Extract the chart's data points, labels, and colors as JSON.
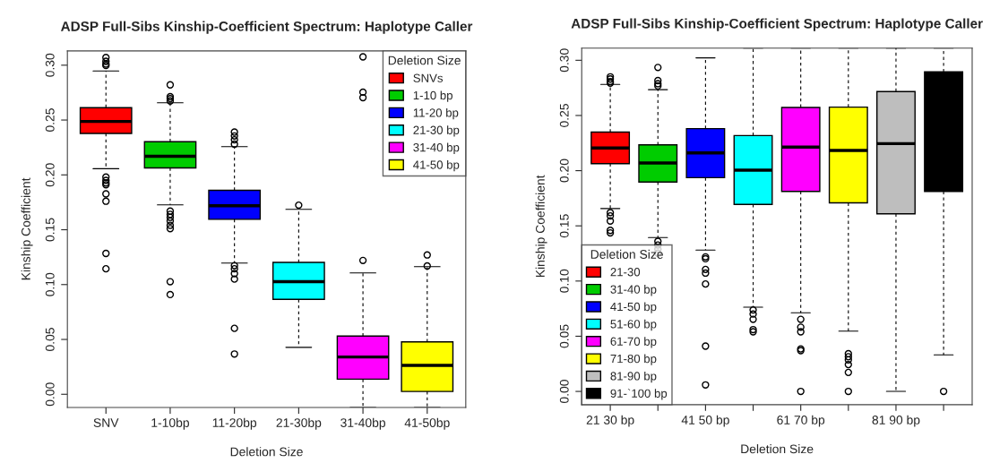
{
  "chart_data": [
    {
      "type": "box",
      "title": "ADSP Full-Sibs Kinship-Coefficient Spectrum: Haplotype Caller",
      "xlabel": "Deletion Size",
      "ylabel": "Kinship Coefficient",
      "legend_title": "Deletion Size",
      "legend": "top right",
      "grid": false,
      "categories": [
        "SNV",
        "1-10bp",
        "11-20bp",
        "21-30bp",
        "31-40bp",
        "41-50bp"
      ],
      "ylim": [
        -0.012,
        0.313
      ],
      "yticks": [
        {
          "value": 0,
          "label": "0.00"
        },
        0.05,
        {
          "value": 0.1,
          "label": "0.10"
        },
        0.15,
        {
          "value": 0.2,
          "label": "0.20"
        },
        0.25,
        {
          "value": 0.3,
          "label": "0.30"
        }
      ],
      "series": [
        {
          "name": "SNVs",
          "color": "#ff0000",
          "boxes": [
            {
              "low": 0.2056,
              "q1": 0.2378,
              "median": 0.2487,
              "q3": 0.2613,
              "high": 0.2947,
              "outliers": [
                0.307,
                0.3035,
                0.301,
                0.2997,
                0.198,
                0.195,
                0.1927,
                0.191,
                0.1827,
                0.176,
                0.1284,
                0.1144
              ]
            },
            null,
            null,
            null,
            null,
            null
          ]
        },
        {
          "name": "1-10 bp",
          "color": "#00cc00",
          "boxes": [
            null,
            {
              "low": 0.1727,
              "q1": 0.2064,
              "median": 0.217,
              "q3": 0.2302,
              "high": 0.2657,
              "outliers": [
                0.2821,
                0.2713,
                0.2695,
                0.2674,
                0.167,
                0.164,
                0.1613,
                0.158,
                0.154,
                0.151,
                0.1026,
                0.0909
              ]
            },
            null,
            null,
            null,
            null
          ]
        },
        {
          "name": "11-20 bp",
          "color": "#0000ff",
          "boxes": [
            null,
            null,
            {
              "low": 0.1196,
              "q1": 0.1595,
              "median": 0.1718,
              "q3": 0.1859,
              "high": 0.2258,
              "outliers": [
                0.239,
                0.2355,
                0.232,
                0.228,
                0.1173,
                0.1144,
                0.11,
                0.105,
                0.0601,
                0.0367
              ]
            },
            null,
            null,
            null
          ]
        },
        {
          "name": "21-30 bp",
          "color": "#00ffff",
          "boxes": [
            null,
            null,
            null,
            {
              "low": 0.0428,
              "q1": 0.0865,
              "median": 0.1026,
              "q3": 0.1202,
              "high": 0.1686,
              "outliers": [
                0.1724
              ]
            },
            null,
            null
          ]
        },
        {
          "name": "31-40 bp",
          "color": "#ff00ff",
          "boxes": [
            null,
            null,
            null,
            null,
            {
              "low": -0.012,
              "q1": 0.0138,
              "median": 0.034,
              "q3": 0.0531,
              "high": 0.1106,
              "outliers": [
                0.3076,
                0.2754,
                0.2704,
                0.122
              ]
            },
            null
          ]
        },
        {
          "name": "41-50 bp",
          "color": "#ffff00",
          "boxes": [
            null,
            null,
            null,
            null,
            null,
            {
              "low": -0.012,
              "q1": 0.0026,
              "median": 0.0264,
              "q3": 0.0478,
              "high": 0.1164,
              "outliers": [
                0.127,
                0.117
              ]
            }
          ]
        }
      ]
    },
    {
      "type": "box",
      "title": "ADSP Full-Sibs Kinship-Coefficient Spectrum: Haplotype Caller",
      "xlabel": "Deletion Size",
      "ylabel": "Kinship Coefficient",
      "legend_title": "Deletion Size",
      "legend": "bottom left",
      "grid": false,
      "categories": [
        "21 30 bp",
        null,
        "41 50 bp",
        null,
        "61 70 bp",
        null,
        "81 90 bp",
        null
      ],
      "ylim": [
        -0.012,
        0.311
      ],
      "yticks": [
        {
          "value": 0,
          "label": "0.00"
        },
        0.05,
        {
          "value": 0.1,
          "label": "0.10"
        },
        0.15,
        {
          "value": 0.2,
          "label": "0.20"
        },
        0.25,
        {
          "value": 0.3,
          "label": "0.30"
        }
      ],
      "series": [
        {
          "name": "21-30",
          "color": "#ff0000",
          "boxes": [
            {
              "low": 0.1657,
              "q1": 0.2064,
              "median": 0.2205,
              "q3": 0.2349,
              "high": 0.2782,
              "outliers": [
                0.285,
                0.283,
                0.2807,
                0.2793,
                0.162,
                0.159,
                0.1544,
                0.1459,
                0.1436
              ]
            },
            null,
            null,
            null,
            null,
            null,
            null,
            null
          ]
        },
        {
          "name": "31-40 bp",
          "color": "#00cc00",
          "boxes": [
            null,
            {
              "low": 0.1394,
              "q1": 0.1897,
              "median": 0.207,
              "q3": 0.2234,
              "high": 0.2734,
              "outliers": [
                0.2935,
                0.2816,
                0.2788,
                0.2768,
                0.136,
                0.1326,
                0.1289,
                0.1252
              ]
            },
            null,
            null,
            null,
            null,
            null,
            null
          ]
        },
        {
          "name": "41-50 bp",
          "color": "#0000ff",
          "boxes": [
            null,
            null,
            {
              "low": 0.1281,
              "q1": 0.1937,
              "median": 0.216,
              "q3": 0.2381,
              "high": 0.3022,
              "outliers": [
                0.1219,
                0.1202,
                0.1105,
                0.1072,
                0.0973,
                0.041,
                0.0059
              ]
            },
            null,
            null,
            null,
            null,
            null
          ]
        },
        {
          "name": "51-60 bp",
          "color": "#00ffff",
          "boxes": [
            null,
            null,
            null,
            {
              "low": 0.0763,
              "q1": 0.1694,
              "median": 0.2005,
              "q3": 0.2318,
              "high": 0.311,
              "outliers": [
                0.0738,
                0.0701,
                0.0653,
                0.056,
                0.054
              ]
            },
            null,
            null,
            null,
            null
          ]
        },
        {
          "name": "61-70 bp",
          "color": "#ff00ff",
          "boxes": [
            null,
            null,
            null,
            null,
            {
              "low": 0.0712,
              "q1": 0.1812,
              "median": 0.2214,
              "q3": 0.2573,
              "high": 0.311,
              "outliers": [
                0.0653,
                0.0582,
                0.054,
                0.0385,
                0.037,
                0.0
              ]
            },
            null,
            null,
            null
          ]
        },
        {
          "name": "71-80 bp",
          "color": "#ffff00",
          "boxes": [
            null,
            null,
            null,
            null,
            null,
            {
              "low": 0.0546,
              "q1": 0.1708,
              "median": 0.2183,
              "q3": 0.2576,
              "high": 0.311,
              "outliers": [
                0.0342,
                0.0314,
                0.0286,
                0.0243,
                0.0172,
                0.0
              ]
            },
            null,
            null
          ]
        },
        {
          "name": "81-90 bp",
          "color": "#bebebe",
          "boxes": [
            null,
            null,
            null,
            null,
            null,
            null,
            {
              "low": 0.0,
              "q1": 0.1609,
              "median": 0.2245,
              "q3": 0.2717,
              "high": 0.311
            },
            null
          ]
        },
        {
          "name": "91-`100 bp",
          "color": "#000000",
          "boxes": [
            null,
            null,
            null,
            null,
            null,
            null,
            null,
            {
              "low": 0.0331,
              "q1": 0.1812,
              "q3": 0.2895,
              "high": 0.311,
              "outliers": [
                0.0
              ]
            }
          ]
        }
      ]
    }
  ]
}
